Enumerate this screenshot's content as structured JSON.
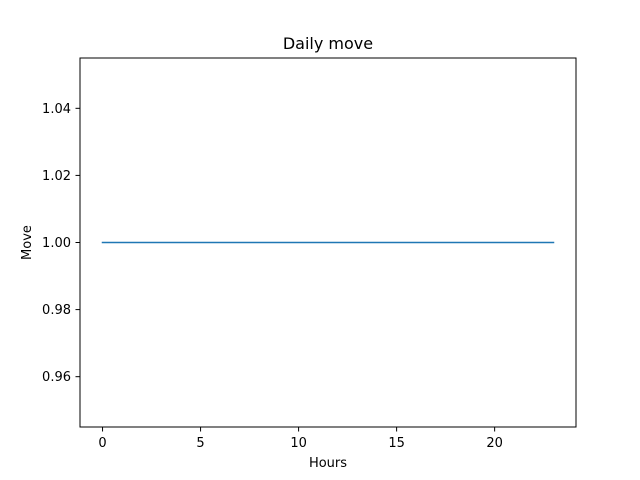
{
  "chart_data": {
    "type": "line",
    "title": "Daily move",
    "xlabel": "Hours",
    "ylabel": "Move",
    "xlim": [
      -1.15,
      24.15
    ],
    "ylim": [
      0.945,
      1.055
    ],
    "xticks": [
      0,
      5,
      10,
      15,
      20
    ],
    "xtick_labels": [
      "0",
      "5",
      "10",
      "15",
      "20"
    ],
    "yticks": [
      0.96,
      0.98,
      1.0,
      1.02,
      1.04
    ],
    "ytick_labels": [
      "0.96",
      "0.98",
      "1.00",
      "1.02",
      "1.04"
    ],
    "grid": false,
    "legend": "none",
    "series": [
      {
        "color": "#1f77b4",
        "x": [
          0,
          1,
          2,
          3,
          4,
          5,
          6,
          7,
          8,
          9,
          10,
          11,
          12,
          13,
          14,
          15,
          16,
          17,
          18,
          19,
          20,
          21,
          22,
          23
        ],
        "y": [
          1,
          1,
          1,
          1,
          1,
          1,
          1,
          1,
          1,
          1,
          1,
          1,
          1,
          1,
          1,
          1,
          1,
          1,
          1,
          1,
          1,
          1,
          1,
          1
        ]
      }
    ]
  }
}
